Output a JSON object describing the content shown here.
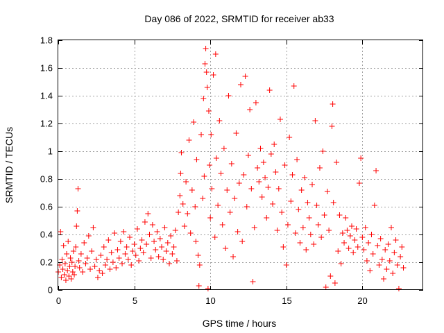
{
  "chart_data": {
    "type": "scatter",
    "title": "Day 086 of 2022, SRMTID for receiver ab33",
    "xlabel": "GPS time / hours",
    "ylabel": "SRMTID / TECUs",
    "xlim": [
      0,
      24
    ],
    "ylim": [
      0,
      1.8
    ],
    "xticks": [
      0,
      5,
      10,
      15,
      20
    ],
    "xtick_labels": [
      "0",
      "5",
      "10",
      "15",
      "20"
    ],
    "yticks": [
      0,
      0.2,
      0.4,
      0.6,
      0.8,
      1.0,
      1.2,
      1.4,
      1.6,
      1.8
    ],
    "ytick_labels": [
      "0",
      "0.2",
      "0.4",
      "0.6",
      "0.8",
      "1",
      "1.2",
      "1.4",
      "1.6",
      "1.8"
    ],
    "grid": true,
    "marker": "+",
    "color": "#ff0000",
    "series": [
      {
        "name": "SRMTID",
        "points": [
          [
            0.0,
            0.13
          ],
          [
            0.1,
            0.18
          ],
          [
            0.15,
            0.42
          ],
          [
            0.2,
            0.09
          ],
          [
            0.25,
            0.22
          ],
          [
            0.3,
            0.15
          ],
          [
            0.35,
            0.32
          ],
          [
            0.4,
            0.11
          ],
          [
            0.45,
            0.19
          ],
          [
            0.5,
            0.07
          ],
          [
            0.55,
            0.26
          ],
          [
            0.6,
            0.14
          ],
          [
            0.65,
            0.35
          ],
          [
            0.7,
            0.1
          ],
          [
            0.75,
            0.17
          ],
          [
            0.8,
            0.23
          ],
          [
            0.85,
            0.08
          ],
          [
            0.9,
            0.2
          ],
          [
            0.95,
            0.13
          ],
          [
            1.0,
            0.28
          ],
          [
            1.05,
            0.11
          ],
          [
            1.1,
            0.17
          ],
          [
            1.15,
            0.31
          ],
          [
            1.2,
            0.46
          ],
          [
            1.25,
            0.57
          ],
          [
            1.3,
            0.73
          ],
          [
            1.35,
            0.21
          ],
          [
            1.4,
            0.16
          ],
          [
            1.5,
            0.26
          ],
          [
            1.6,
            0.13
          ],
          [
            1.7,
            0.34
          ],
          [
            1.8,
            0.19
          ],
          [
            1.9,
            0.23
          ],
          [
            2.0,
            0.39
          ],
          [
            2.1,
            0.15
          ],
          [
            2.2,
            0.28
          ],
          [
            2.3,
            0.45
          ],
          [
            2.4,
            0.17
          ],
          [
            2.5,
            0.22
          ],
          [
            2.6,
            0.09
          ],
          [
            2.7,
            0.14
          ],
          [
            2.8,
            0.25
          ],
          [
            2.9,
            0.12
          ],
          [
            3.0,
            0.31
          ],
          [
            3.1,
            0.18
          ],
          [
            3.2,
            0.22
          ],
          [
            3.3,
            0.36
          ],
          [
            3.4,
            0.15
          ],
          [
            3.5,
            0.27
          ],
          [
            3.6,
            0.2
          ],
          [
            3.7,
            0.41
          ],
          [
            3.8,
            0.16
          ],
          [
            3.9,
            0.29
          ],
          [
            4.0,
            0.23
          ],
          [
            4.1,
            0.35
          ],
          [
            4.2,
            0.19
          ],
          [
            4.3,
            0.42
          ],
          [
            4.4,
            0.26
          ],
          [
            4.5,
            0.31
          ],
          [
            4.6,
            0.22
          ],
          [
            4.7,
            0.38
          ],
          [
            4.8,
            0.18
          ],
          [
            4.9,
            0.28
          ],
          [
            5.0,
            0.33
          ],
          [
            5.1,
            0.25
          ],
          [
            5.2,
            0.44
          ],
          [
            5.3,
            0.21
          ],
          [
            5.4,
            0.3
          ],
          [
            5.5,
            0.36
          ],
          [
            5.6,
            0.27
          ],
          [
            5.7,
            0.49
          ],
          [
            5.8,
            0.33
          ],
          [
            5.9,
            0.55
          ],
          [
            6.0,
            0.4
          ],
          [
            6.1,
            0.23
          ],
          [
            6.2,
            0.47
          ],
          [
            6.3,
            0.35
          ],
          [
            6.4,
            0.29
          ],
          [
            6.5,
            0.42
          ],
          [
            6.6,
            0.24
          ],
          [
            6.7,
            0.37
          ],
          [
            6.8,
            0.31
          ],
          [
            6.9,
            0.22
          ],
          [
            7.0,
            0.45
          ],
          [
            7.1,
            0.28
          ],
          [
            7.2,
            0.34
          ],
          [
            7.3,
            0.19
          ],
          [
            7.4,
            0.39
          ],
          [
            7.5,
            0.26
          ],
          [
            7.6,
            0.31
          ],
          [
            7.7,
            0.43
          ],
          [
            7.8,
            0.21
          ],
          [
            7.9,
            0.56
          ],
          [
            8.0,
            0.68
          ],
          [
            8.05,
            0.84
          ],
          [
            8.1,
            0.99
          ],
          [
            8.2,
            0.62
          ],
          [
            8.3,
            0.46
          ],
          [
            8.4,
            0.78
          ],
          [
            8.5,
            0.55
          ],
          [
            8.6,
            1.08
          ],
          [
            8.7,
            0.41
          ],
          [
            8.8,
            0.72
          ],
          [
            8.9,
            1.21
          ],
          [
            9.0,
            0.6
          ],
          [
            9.05,
            0.35
          ],
          [
            9.1,
            0.94
          ],
          [
            9.2,
            0.25
          ],
          [
            9.25,
            0.03
          ],
          [
            9.3,
            0.18
          ],
          [
            9.4,
            1.12
          ],
          [
            9.5,
            0.66
          ],
          [
            9.55,
            1.38
          ],
          [
            9.6,
            0.82
          ],
          [
            9.65,
            1.63
          ],
          [
            9.7,
            1.74
          ],
          [
            9.75,
            1.57
          ],
          [
            9.8,
            1.46
          ],
          [
            9.85,
            0.01
          ],
          [
            9.9,
            1.29
          ],
          [
            9.95,
            0.9
          ],
          [
            10.0,
            0.52
          ],
          [
            10.05,
            1.12
          ],
          [
            10.1,
            0.73
          ],
          [
            10.2,
            1.55
          ],
          [
            10.3,
            0.38
          ],
          [
            10.35,
            1.7
          ],
          [
            10.4,
            0.95
          ],
          [
            10.5,
            0.61
          ],
          [
            10.6,
            1.22
          ],
          [
            10.7,
            0.84
          ],
          [
            10.8,
            0.47
          ],
          [
            10.9,
            1.02
          ],
          [
            11.0,
            0.3
          ],
          [
            11.1,
            0.72
          ],
          [
            11.2,
            1.4
          ],
          [
            11.3,
            0.56
          ],
          [
            11.4,
            0.91
          ],
          [
            11.5,
            0.24
          ],
          [
            11.6,
            0.66
          ],
          [
            11.7,
            1.13
          ],
          [
            11.8,
            0.42
          ],
          [
            11.9,
            0.77
          ],
          [
            12.0,
            1.48
          ],
          [
            12.1,
            0.35
          ],
          [
            12.2,
            0.83
          ],
          [
            12.3,
            1.54
          ],
          [
            12.4,
            0.6
          ],
          [
            12.5,
            0.97
          ],
          [
            12.6,
            1.3
          ],
          [
            12.7,
            0.73
          ],
          [
            12.8,
            0.06
          ],
          [
            12.9,
            0.45
          ],
          [
            13.0,
            1.35
          ],
          [
            13.1,
            0.88
          ],
          [
            13.2,
            0.78
          ],
          [
            13.3,
            1.02
          ],
          [
            13.4,
            0.67
          ],
          [
            13.5,
            0.92
          ],
          [
            13.6,
            0.81
          ],
          [
            13.7,
            0.52
          ],
          [
            13.8,
            0.74
          ],
          [
            13.9,
            1.44
          ],
          [
            14.0,
            0.98
          ],
          [
            14.1,
            0.62
          ],
          [
            14.2,
            1.05
          ],
          [
            14.3,
            0.85
          ],
          [
            14.4,
            0.43
          ],
          [
            14.5,
            0.73
          ],
          [
            14.6,
            1.23
          ],
          [
            14.7,
            0.56
          ],
          [
            14.8,
            0.31
          ],
          [
            14.9,
            0.9
          ],
          [
            15.0,
            0.18
          ],
          [
            15.1,
            0.47
          ],
          [
            15.2,
            1.1
          ],
          [
            15.3,
            0.64
          ],
          [
            15.4,
            0.83
          ],
          [
            15.5,
            1.47
          ],
          [
            15.6,
            0.41
          ],
          [
            15.7,
            0.94
          ],
          [
            15.8,
            0.58
          ],
          [
            15.9,
            0.34
          ],
          [
            16.0,
            0.72
          ],
          [
            16.1,
            0.45
          ],
          [
            16.2,
            0.81
          ],
          [
            16.3,
            0.29
          ],
          [
            16.4,
            0.63
          ],
          [
            16.5,
            0.52
          ],
          [
            16.6,
            0.4
          ],
          [
            16.7,
            0.76
          ],
          [
            16.8,
            0.33
          ],
          [
            16.9,
            1.22
          ],
          [
            17.0,
            0.61
          ],
          [
            17.1,
            0.47
          ],
          [
            17.2,
            0.88
          ],
          [
            17.3,
            0.38
          ],
          [
            17.4,
            1.0
          ],
          [
            17.5,
            0.54
          ],
          [
            17.6,
            0.02
          ],
          [
            17.7,
            0.71
          ],
          [
            17.8,
            0.43
          ],
          [
            17.9,
            0.1
          ],
          [
            18.0,
            1.18
          ],
          [
            18.05,
            1.34
          ],
          [
            18.1,
            0.63
          ],
          [
            18.2,
            0.05
          ],
          [
            18.3,
            0.92
          ],
          [
            18.4,
            0.28
          ],
          [
            18.5,
            0.54
          ],
          [
            18.6,
            0.19
          ],
          [
            18.7,
            0.41
          ],
          [
            18.8,
            0.34
          ],
          [
            18.9,
            0.52
          ],
          [
            19.0,
            0.43
          ],
          [
            19.1,
            0.3
          ],
          [
            19.2,
            0.39
          ],
          [
            19.3,
            0.46
          ],
          [
            19.4,
            0.27
          ],
          [
            19.5,
            0.36
          ],
          [
            19.6,
            0.44
          ],
          [
            19.7,
            0.31
          ],
          [
            19.8,
            0.77
          ],
          [
            19.9,
            0.95
          ],
          [
            20.0,
            0.38
          ],
          [
            20.1,
            0.29
          ],
          [
            20.2,
            0.45
          ],
          [
            20.3,
            0.21
          ],
          [
            20.4,
            0.34
          ],
          [
            20.5,
            0.14
          ],
          [
            20.6,
            0.4
          ],
          [
            20.7,
            0.26
          ],
          [
            20.8,
            0.61
          ],
          [
            20.9,
            0.86
          ],
          [
            21.0,
            0.32
          ],
          [
            21.1,
            0.18
          ],
          [
            21.2,
            0.37
          ],
          [
            21.3,
            0.22
          ],
          [
            21.4,
            0.08
          ],
          [
            21.5,
            0.29
          ],
          [
            21.6,
            0.15
          ],
          [
            21.7,
            0.33
          ],
          [
            21.8,
            0.21
          ],
          [
            21.9,
            0.45
          ],
          [
            22.0,
            0.12
          ],
          [
            22.1,
            0.27
          ],
          [
            22.2,
            0.36
          ],
          [
            22.3,
            0.18
          ],
          [
            22.4,
            0.01
          ],
          [
            22.5,
            0.24
          ],
          [
            22.6,
            0.31
          ],
          [
            22.7,
            0.16
          ]
        ]
      }
    ]
  }
}
